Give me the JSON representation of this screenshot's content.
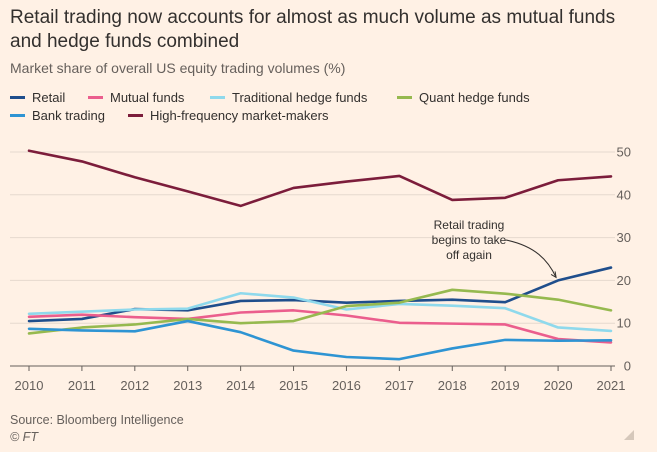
{
  "header": {
    "title": "Retail trading now accounts for almost as much volume as mutual funds and hedge funds combined",
    "subtitle": "Market share of overall US equity trading volumes (%)"
  },
  "footer": {
    "source": "Source: Bloomberg Intelligence",
    "credit": "© FT"
  },
  "colors": {
    "background": "#fff1e5",
    "grid": "#e6d9ce",
    "axis": "#66605c",
    "text": "#33302e"
  },
  "chart_data": {
    "type": "line",
    "title": "Retail trading now accounts for almost as much volume as mutual funds and hedge funds combined",
    "subtitle": "Market share of overall US equity trading volumes (%)",
    "xlabel": "",
    "ylabel": "",
    "x": [
      "2010",
      "2011",
      "2012",
      "2013",
      "2014",
      "2015",
      "2016",
      "2017",
      "2018",
      "2019",
      "2020",
      "2021"
    ],
    "xlim": [
      2010,
      2021
    ],
    "ylim": [
      0,
      50
    ],
    "yticks": [
      "0",
      "10",
      "20",
      "30",
      "40",
      "50"
    ],
    "y_axis_position": "right",
    "grid": true,
    "legend_position": "top",
    "series": [
      {
        "name": "Retail",
        "color": "#1f4e8c",
        "values": [
          10.5,
          11,
          13.3,
          13,
          15.2,
          15.4,
          14.8,
          15.2,
          15.5,
          14.9,
          20,
          23
        ]
      },
      {
        "name": "Mutual funds",
        "color": "#eb5e8d",
        "values": [
          11.5,
          12,
          11.4,
          11,
          12.5,
          13,
          11.8,
          10.1,
          9.9,
          9.7,
          6.3,
          5.5
        ]
      },
      {
        "name": "Traditional hedge funds",
        "color": "#8fd9ec",
        "values": [
          12.2,
          12.7,
          13.2,
          13.4,
          17,
          16,
          13.2,
          14.5,
          14.1,
          13.5,
          9,
          8.2
        ]
      },
      {
        "name": "Quant hedge funds",
        "color": "#96b94f",
        "values": [
          7.6,
          9,
          9.7,
          11,
          10,
          10.5,
          14,
          14.8,
          17.8,
          16.9,
          15.5,
          13
        ]
      },
      {
        "name": "Bank trading",
        "color": "#2e94d3",
        "values": [
          8.7,
          8.3,
          8.1,
          10.5,
          7.9,
          3.6,
          2.1,
          1.6,
          4.1,
          6.1,
          5.9,
          6
        ]
      },
      {
        "name": "High-frequency market-makers",
        "color": "#7c1d3b",
        "values": [
          50.3,
          47.8,
          44.1,
          40.8,
          37.4,
          41.6,
          43.1,
          44.4,
          38.8,
          39.3,
          43.4,
          44.3
        ]
      }
    ],
    "annotation": {
      "text": [
        "Retail trading",
        "begins to take",
        "off again"
      ],
      "target": {
        "x": "2020",
        "series": "Retail"
      }
    }
  }
}
